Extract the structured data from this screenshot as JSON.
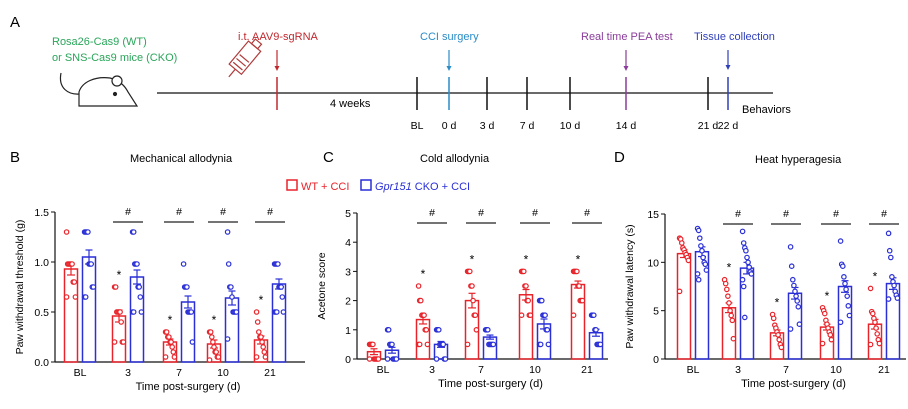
{
  "colors": {
    "wt": "#e8232a",
    "cko": "#2a2fd6",
    "aav": "#c0282e",
    "cci": "#2a8cc8",
    "pea": "#8a3c9a",
    "tissue": "#2f3fb8",
    "mice": "#2aa65a"
  },
  "panel_a": {
    "label": "A",
    "mice_line1": "Rosa26-Cas9 (WT)",
    "mice_line2": "or SNS-Cas9 mice (CKO)",
    "aav_label": "i.t. AAV9-sgRNA",
    "cci_label": "CCI surgery",
    "pea_label": "Real time PEA test",
    "tissue_label": "Tissue collection",
    "interval_label": "4 weeks",
    "behaviors_label": "Behaviors",
    "ticks": [
      "BL",
      "0 d",
      "3 d",
      "7 d",
      "10 d",
      "14 d",
      "21 d",
      "22 d"
    ]
  },
  "legend": {
    "wt": "WT + CCI",
    "cko_gene": "Gpr151",
    "cko_rest": " CKO + CCI"
  },
  "chart_data": [
    {
      "panel": "B",
      "type": "bar",
      "title": "Mechanical allodynia",
      "ylabel": "Paw withdrawal threshold (g)",
      "xlabel": "Time post-surgery (d)",
      "categories": [
        "BL",
        "3",
        "7",
        "10",
        "21"
      ],
      "ylim": [
        0,
        1.5
      ],
      "yticks": [
        "0.0",
        "0.5",
        "1.0",
        "1.5"
      ],
      "ytick_values": [
        0,
        0.5,
        1.0,
        1.5
      ],
      "series": [
        {
          "name": "WT + CCI",
          "values": [
            0.93,
            0.46,
            0.2,
            0.18,
            0.22
          ],
          "sem": [
            0.06,
            0.06,
            0.03,
            0.04,
            0.04
          ],
          "points": [
            [
              1.3,
              0.98,
              0.98,
              0.98,
              0.98,
              0.98,
              0.8,
              0.8,
              0.65,
              0.65
            ],
            [
              0.75,
              0.75,
              0.5,
              0.5,
              0.5,
              0.5,
              0.4,
              0.2,
              0.2,
              0.2
            ],
            [
              0.3,
              0.3,
              0.25,
              0.25,
              0.2,
              0.2,
              0.15,
              0.1,
              0.05,
              0.05
            ],
            [
              0.3,
              0.3,
              0.25,
              0.2,
              0.15,
              0.1,
              0.1,
              0.05,
              0.05,
              0.02
            ],
            [
              0.5,
              0.4,
              0.3,
              0.25,
              0.25,
              0.2,
              0.15,
              0.1,
              0.05,
              0.05
            ]
          ]
        },
        {
          "name": "Gpr151 CKO + CCI",
          "values": [
            1.05,
            0.85,
            0.6,
            0.64,
            0.78
          ],
          "sem": [
            0.07,
            0.07,
            0.06,
            0.07,
            0.05
          ],
          "points": [
            [
              1.3,
              1.3,
              1.3,
              1.3,
              0.98,
              0.98,
              0.98,
              0.75,
              0.75,
              0.65,
              0.65
            ],
            [
              1.3,
              1.3,
              0.98,
              0.98,
              0.98,
              0.75,
              0.75,
              0.65,
              0.5,
              0.5,
              0.5
            ],
            [
              0.98,
              0.75,
              0.75,
              0.75,
              0.5,
              0.5,
              0.5,
              0.5,
              0.2
            ],
            [
              1.3,
              0.98,
              0.75,
              0.75,
              0.65,
              0.5,
              0.5,
              0.5,
              0.5,
              0.23
            ],
            [
              0.98,
              0.98,
              0.98,
              0.98,
              0.75,
              0.75,
              0.75,
              0.65,
              0.5,
              0.5,
              0.5,
              0.5
            ]
          ]
        }
      ],
      "star_groups": [
        1,
        2,
        3,
        4
      ],
      "hash_groups": [
        1,
        2,
        3,
        4
      ]
    },
    {
      "panel": "C",
      "type": "bar",
      "title": "Cold allodynia",
      "ylabel": "Acetone score",
      "xlabel": "Time post-surgery (d)",
      "categories": [
        "BL",
        "3",
        "7",
        "10",
        "21"
      ],
      "ylim": [
        0,
        5
      ],
      "yticks": [
        "0",
        "1",
        "2",
        "3",
        "4",
        "5"
      ],
      "ytick_values": [
        0,
        1,
        2,
        3,
        4,
        5
      ],
      "series": [
        {
          "name": "WT + CCI",
          "values": [
            0.25,
            1.35,
            2.0,
            2.2,
            2.55
          ],
          "sem": [
            0.1,
            0.15,
            0.25,
            0.18,
            0.12
          ],
          "points": [
            [
              0.5,
              0.5,
              0.5,
              0.5,
              0,
              0,
              0,
              0,
              0,
              0
            ],
            [
              2.5,
              2,
              2,
              1.5,
              1.5,
              1.5,
              1,
              1,
              0.5,
              0.5,
              0.5
            ],
            [
              3,
              3,
              3,
              2.5,
              2.5,
              2,
              1.5,
              1.5,
              1,
              0.5
            ],
            [
              3,
              3,
              3,
              2.5,
              2.5,
              2,
              2,
              1.5,
              1.5,
              1.5
            ],
            [
              3,
              3,
              3,
              3,
              2.5,
              2.5,
              2,
              2,
              2,
              1.5
            ]
          ]
        },
        {
          "name": "Gpr151 CKO + CCI",
          "values": [
            0.3,
            0.5,
            0.75,
            1.2,
            0.9
          ],
          "sem": [
            0.1,
            0.1,
            0.07,
            0.17,
            0.12
          ],
          "points": [
            [
              1,
              1,
              0.5,
              0.5,
              0.5,
              0,
              0,
              0,
              0,
              0
            ],
            [
              1,
              1,
              1,
              0.5,
              0.5,
              0.5,
              0.5,
              0,
              0,
              0
            ],
            [
              1,
              1,
              1,
              0.5,
              0.5,
              0.5,
              0.5,
              0.5
            ],
            [
              2,
              2,
              2,
              1.5,
              1.5,
              1.5,
              1,
              1,
              0.5,
              0.5,
              0.5
            ],
            [
              1.5,
              1.5,
              1.5,
              1,
              1,
              0.5,
              0.5,
              0.5,
              0.5
            ]
          ]
        }
      ],
      "star_groups": [
        1,
        2,
        3,
        4
      ],
      "hash_groups": [
        1,
        2,
        3,
        4
      ]
    },
    {
      "panel": "D",
      "type": "bar",
      "title": "Heat hyperagesia",
      "ylabel": "Paw withdrawal latency (s)",
      "xlabel": "Time post-surgery (d)",
      "categories": [
        "BL",
        "3",
        "7",
        "10",
        "21"
      ],
      "ylim": [
        0,
        15
      ],
      "yticks": [
        "0",
        "5",
        "10",
        "15"
      ],
      "ytick_values": [
        0,
        5,
        10,
        15
      ],
      "series": [
        {
          "name": "WT + CCI",
          "values": [
            10.9,
            5.3,
            2.7,
            3.3,
            3.6
          ],
          "sem": [
            0.4,
            0.5,
            0.3,
            0.3,
            0.5
          ],
          "points": [
            [
              12.5,
              12.4,
              12,
              11.5,
              11.3,
              11,
              10.8,
              10.5,
              10.2,
              7
            ],
            [
              8.2,
              7.8,
              7.2,
              6.5,
              5.8,
              5,
              4.5,
              4,
              2.1
            ],
            [
              4.6,
              4.2,
              3.5,
              3.2,
              2.8,
              2.5,
              2,
              1.5,
              1.2
            ],
            [
              5.3,
              5,
              4.7,
              4,
              3.6,
              3.2,
              2.8,
              2.5,
              2,
              1.6
            ],
            [
              7.3,
              4.9,
              4.7,
              4.2,
              3.8,
              3.2,
              2.6,
              2,
              1.6,
              1.5
            ]
          ]
        },
        {
          "name": "Gpr151 CKO + CCI",
          "values": [
            11.1,
            9.4,
            6.8,
            7.5,
            7.8
          ],
          "sem": [
            0.5,
            0.6,
            0.6,
            0.6,
            0.6
          ],
          "points": [
            [
              13.5,
              13.3,
              12.5,
              11.7,
              11.2,
              10.5,
              10,
              9.8,
              9.2,
              8.8,
              8.2
            ],
            [
              13.2,
              12,
              11.5,
              11.2,
              10.5,
              10,
              9.5,
              9,
              8.8,
              8.2,
              7.5,
              4.3
            ],
            [
              11.6,
              9.6,
              8.2,
              7.6,
              7,
              6.5,
              6,
              5.4,
              3.6,
              3.1
            ],
            [
              12.2,
              9.8,
              9.6,
              8.5,
              7.8,
              7.2,
              6.5,
              5.5,
              4.5,
              3.8
            ],
            [
              13,
              11.2,
              10.5,
              8.5,
              8,
              7.6,
              7,
              6.6,
              6.3,
              6.2
            ]
          ]
        }
      ],
      "star_groups": [
        1,
        2,
        3,
        4
      ],
      "hash_groups": [
        1,
        2,
        3,
        4
      ]
    }
  ]
}
